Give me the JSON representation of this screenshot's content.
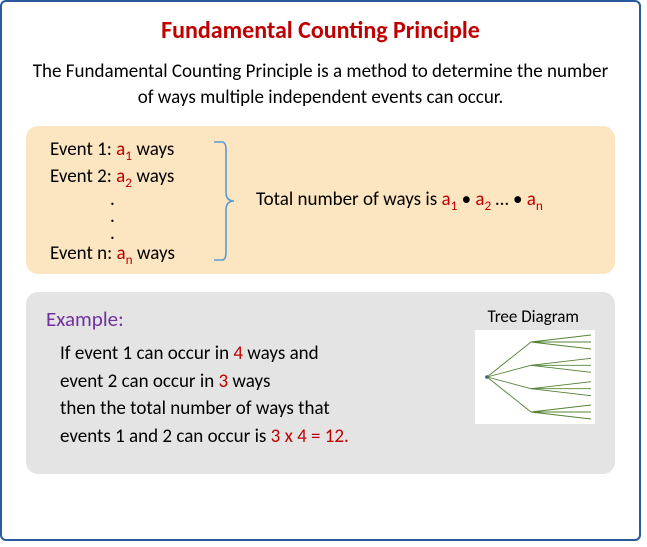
{
  "title": "Fundamental Counting Principle",
  "intro": "The Fundamental Counting Principle is a method to determine the number of ways multiple independent events can occur.",
  "principle": {
    "background_color": "#fce5c1",
    "border_radius": 12,
    "events": [
      {
        "label": "Event 1: ",
        "var": "a",
        "sub": "1",
        "suffix": " ways"
      },
      {
        "label": "Event 2: ",
        "var": "a",
        "sub": "2",
        "suffix": " ways"
      },
      {
        "label": "Event n: ",
        "var": "a",
        "sub": "n",
        "suffix": " ways"
      }
    ],
    "bracket_color": "#5b9bd5",
    "total_prefix": "Total number of ways is ",
    "total_terms": [
      {
        "var": "a",
        "sub": "1"
      },
      {
        "var": "a",
        "sub": "2"
      },
      {
        "ellipsis": "…"
      },
      {
        "var": "a",
        "sub": "n"
      }
    ],
    "dot": " • "
  },
  "example": {
    "background_color": "#e4e4e4",
    "border_radius": 12,
    "label": "Example:",
    "label_color": "#7030a0",
    "line1_a": "If event 1 can occur in ",
    "line1_b": "4",
    "line1_c": " ways and",
    "line2_a": "event 2 can occur in ",
    "line2_b": "3",
    "line2_c": " ways",
    "line3": "then the total number of ways that",
    "line4_a": "events 1 and 2 can occur is ",
    "line4_b": "3 x 4 = 12.",
    "tree_label": "Tree Diagram",
    "tree": {
      "type": "tree",
      "root_color": "#2e5090",
      "branch_color": "#548235",
      "level1_count": 4,
      "level2_count": 3,
      "background_color": "#ffffff"
    }
  },
  "colors": {
    "border": "#2a5a9b",
    "title": "#c00000",
    "red": "#c00000",
    "black": "#000000"
  }
}
